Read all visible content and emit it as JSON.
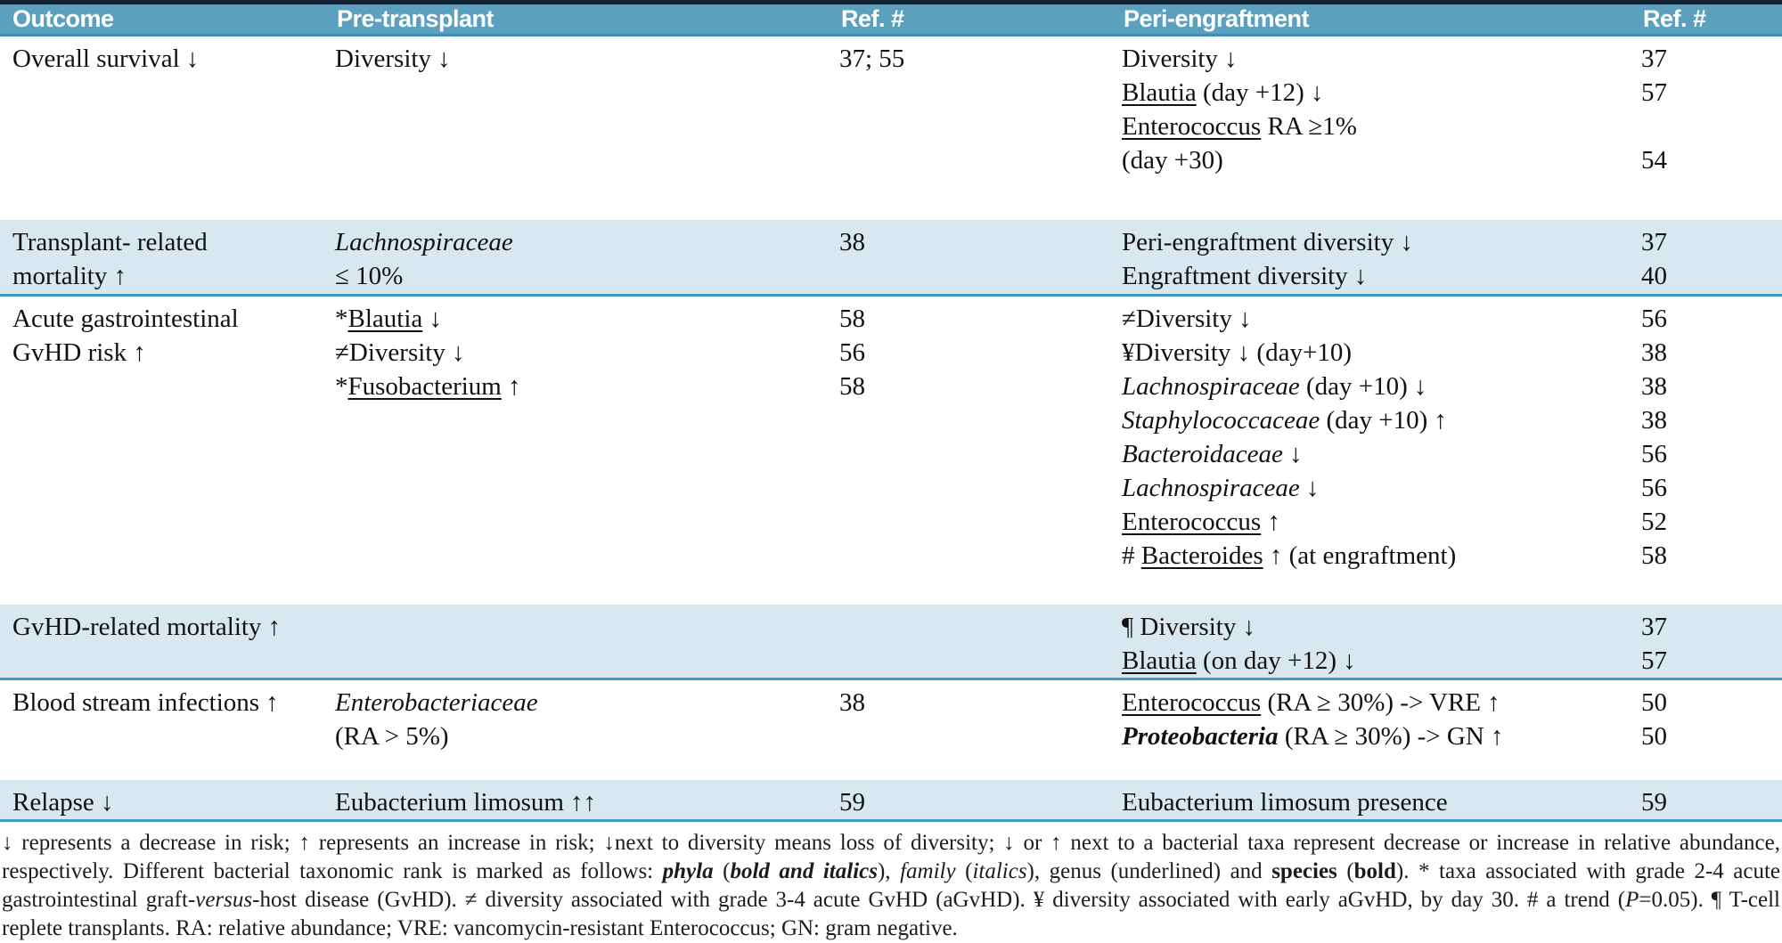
{
  "meta": {
    "header_bg": "#5ca0c0",
    "band_bg": "#d9e8f0",
    "rule_color": "#3e9cc2",
    "top_border": "#0e2233"
  },
  "table": {
    "headers": [
      "Outcome",
      "Pre-transplant",
      "Ref. #",
      "Peri-engraftment",
      "Ref. #"
    ],
    "rows": [
      {
        "shade": "white",
        "min_height": 206,
        "outcome": [
          "Overall survival ↓"
        ],
        "pre": [
          {
            "segs": [
              [
                "Diversity ↓",
                "p"
              ]
            ],
            "ref": "37; 55"
          }
        ],
        "peri": [
          {
            "segs": [
              [
                "Diversity ↓",
                "p"
              ]
            ],
            "ref": "37"
          },
          {
            "segs": [
              [
                "Blautia",
                "u"
              ],
              [
                " (day +12) ↓",
                "p"
              ]
            ],
            "ref": "57"
          },
          {
            "segs": [
              [
                "Enterococcus",
                "u"
              ],
              [
                " RA ≥1%",
                "p"
              ]
            ],
            "ref": ""
          },
          {
            "segs": [
              [
                "(day +30)",
                "p"
              ]
            ],
            "ref": "54"
          }
        ]
      },
      {
        "shade": "light",
        "min_height": 86,
        "outcome": [
          "Transplant- related",
          "mortality ↑"
        ],
        "pre": [
          {
            "segs": [
              [
                "Lachnospiraceae",
                "i"
              ]
            ],
            "ref": "38"
          },
          {
            "segs": [
              [
                "≤ 10%",
                "p"
              ]
            ],
            "ref": ""
          }
        ],
        "peri": [
          {
            "segs": [
              [
                "Peri-engraftment diversity ↓",
                "p"
              ]
            ],
            "ref": "37"
          },
          {
            "segs": [
              [
                "Engraftment diversity ↓",
                "p"
              ]
            ],
            "ref": "40"
          }
        ]
      },
      {
        "shade": "white",
        "min_height": 346,
        "outcome": [
          "Acute gastrointestinal",
          "GvHD risk ↑"
        ],
        "pre": [
          {
            "segs": [
              [
                "*",
                "p"
              ],
              [
                "Blautia",
                "u"
              ],
              [
                " ↓",
                "p"
              ]
            ],
            "ref": "58"
          },
          {
            "segs": [
              [
                "≠Diversity ↓",
                "p"
              ]
            ],
            "ref": "56"
          },
          {
            "segs": [
              [
                "*",
                "p"
              ],
              [
                "Fusobacterium",
                "u"
              ],
              [
                " ↑",
                "p"
              ]
            ],
            "ref": "58"
          }
        ],
        "peri": [
          {
            "segs": [
              [
                "≠Diversity ↓",
                "p"
              ]
            ],
            "ref": "56"
          },
          {
            "segs": [
              [
                "¥Diversity ↓ (day+10)",
                "p"
              ]
            ],
            "ref": "38"
          },
          {
            "segs": [
              [
                "Lachnospiraceae",
                "i"
              ],
              [
                " (day +10) ↓",
                "p"
              ]
            ],
            "ref": "38"
          },
          {
            "segs": [
              [
                "Staphylococcaceae",
                "i"
              ],
              [
                " (day +10) ↑",
                "p"
              ]
            ],
            "ref": "38"
          },
          {
            "segs": [
              [
                "Bacteroidaceae",
                "i"
              ],
              [
                " ↓",
                "p"
              ]
            ],
            "ref": "56"
          },
          {
            "segs": [
              [
                "Lachnospiraceae",
                "i"
              ],
              [
                " ↓",
                "p"
              ]
            ],
            "ref": "56"
          },
          {
            "segs": [
              [
                "Enterococcus",
                "u"
              ],
              [
                " ↑",
                "p"
              ]
            ],
            "ref": "52"
          },
          {
            "segs": [
              [
                "# ",
                "p"
              ],
              [
                "Bacteroides",
                "u"
              ],
              [
                " ↑ (at engraftment)",
                "p"
              ]
            ],
            "ref": "58"
          }
        ]
      },
      {
        "shade": "light",
        "min_height": 82,
        "outcome": [
          "GvHD-related mortality ↑"
        ],
        "pre": [],
        "peri": [
          {
            "segs": [
              [
                "¶ Diversity ↓",
                "p"
              ]
            ],
            "ref": "37"
          },
          {
            "segs": [
              [
                "Blautia",
                "u"
              ],
              [
                " (on day +12) ↓",
                "p"
              ]
            ],
            "ref": "57"
          }
        ]
      },
      {
        "shade": "white",
        "min_height": 112,
        "outcome": [
          "Blood stream infections ↑"
        ],
        "pre": [
          {
            "segs": [
              [
                "Enterobacteriaceae",
                "i"
              ]
            ],
            "ref": "38"
          },
          {
            "segs": [
              [
                "(RA > 5%)",
                "p"
              ]
            ],
            "ref": ""
          }
        ],
        "peri": [
          {
            "segs": [
              [
                "Enterococcus",
                "u"
              ],
              [
                " (RA ≥ 30%) -> VRE ↑",
                "p"
              ]
            ],
            "ref": "50"
          },
          {
            "segs": [
              [
                "Proteobacteria",
                "bi"
              ],
              [
                " (RA ≥ 30%) -> GN ↑",
                "p"
              ]
            ],
            "ref": "50"
          }
        ]
      },
      {
        "shade": "light",
        "min_height": 44,
        "outcome": [
          "Relapse ↓"
        ],
        "pre": [
          {
            "segs": [
              [
                "Eubacterium limosum ↑↑",
                "p"
              ]
            ],
            "ref": "59"
          }
        ],
        "peri": [
          {
            "segs": [
              [
                "Eubacterium limosum presence",
                "p"
              ]
            ],
            "ref": "59"
          }
        ]
      }
    ]
  },
  "footnote": {
    "segments": [
      [
        "↓ represents a decrease in risk; ↑ represents an increase in risk; ↓next to diversity means loss of diversity; ↓ or ↑ next to a bacterial taxa represent decrease or increase in relative abundance, respectively. Different bacterial taxonomic rank is marked as follows: ",
        "p"
      ],
      [
        "phyla",
        "bi"
      ],
      [
        " (",
        "p"
      ],
      [
        "bold and italics",
        "bi"
      ],
      [
        "), ",
        "p"
      ],
      [
        "family",
        "i"
      ],
      [
        " (",
        "p"
      ],
      [
        "italics",
        "i"
      ],
      [
        "), genus (underlined) and ",
        "p"
      ],
      [
        "species",
        "b"
      ],
      [
        " (",
        "p"
      ],
      [
        "bold",
        "b"
      ],
      [
        "). * taxa associated with grade 2-4 acute gastrointestinal graft-",
        "p"
      ],
      [
        "versus",
        "i"
      ],
      [
        "-host disease (GvHD). ≠ diversity associated with grade 3-4 acute GvHD (aGvHD). ¥ diversity associated with early aGvHD, by day 30. # a trend (",
        "p"
      ],
      [
        "P",
        "i"
      ],
      [
        "=0.05). ¶ T-cell replete transplants. RA: relative abundance; VRE: vancomycin-resistant Enterococcus; GN: gram negative.",
        "p"
      ]
    ]
  }
}
